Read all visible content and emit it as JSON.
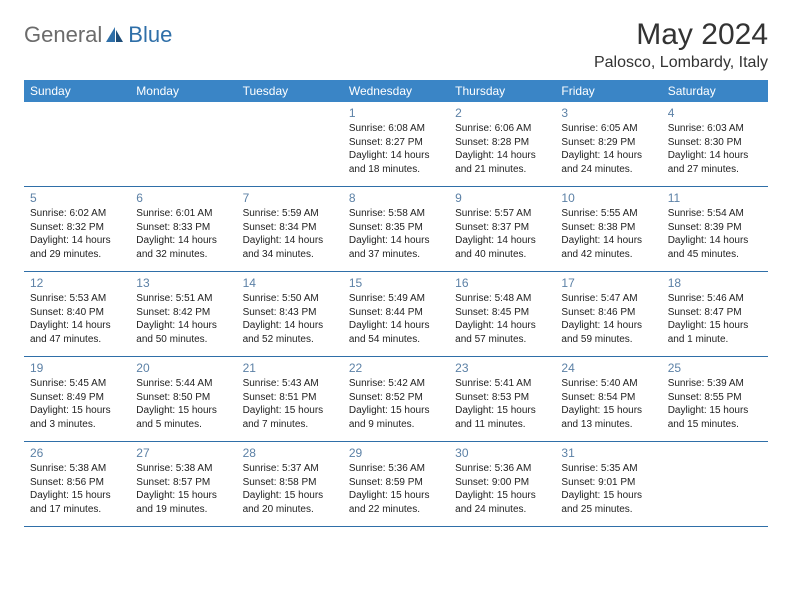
{
  "header": {
    "logo_general": "General",
    "logo_blue": "Blue",
    "month_title": "May 2024",
    "location": "Palosco, Lombardy, Italy"
  },
  "colors": {
    "header_bar": "#3a85c6",
    "header_text": "#ffffff",
    "daynum": "#5c81a6",
    "divider": "#2f6fa8",
    "logo_gray": "#6b6b6b",
    "logo_blue": "#2f6fa8"
  },
  "day_names": [
    "Sunday",
    "Monday",
    "Tuesday",
    "Wednesday",
    "Thursday",
    "Friday",
    "Saturday"
  ],
  "weeks": [
    [
      null,
      null,
      null,
      {
        "n": "1",
        "sr": "Sunrise: 6:08 AM",
        "ss": "Sunset: 8:27 PM",
        "dl1": "Daylight: 14 hours",
        "dl2": "and 18 minutes."
      },
      {
        "n": "2",
        "sr": "Sunrise: 6:06 AM",
        "ss": "Sunset: 8:28 PM",
        "dl1": "Daylight: 14 hours",
        "dl2": "and 21 minutes."
      },
      {
        "n": "3",
        "sr": "Sunrise: 6:05 AM",
        "ss": "Sunset: 8:29 PM",
        "dl1": "Daylight: 14 hours",
        "dl2": "and 24 minutes."
      },
      {
        "n": "4",
        "sr": "Sunrise: 6:03 AM",
        "ss": "Sunset: 8:30 PM",
        "dl1": "Daylight: 14 hours",
        "dl2": "and 27 minutes."
      }
    ],
    [
      {
        "n": "5",
        "sr": "Sunrise: 6:02 AM",
        "ss": "Sunset: 8:32 PM",
        "dl1": "Daylight: 14 hours",
        "dl2": "and 29 minutes."
      },
      {
        "n": "6",
        "sr": "Sunrise: 6:01 AM",
        "ss": "Sunset: 8:33 PM",
        "dl1": "Daylight: 14 hours",
        "dl2": "and 32 minutes."
      },
      {
        "n": "7",
        "sr": "Sunrise: 5:59 AM",
        "ss": "Sunset: 8:34 PM",
        "dl1": "Daylight: 14 hours",
        "dl2": "and 34 minutes."
      },
      {
        "n": "8",
        "sr": "Sunrise: 5:58 AM",
        "ss": "Sunset: 8:35 PM",
        "dl1": "Daylight: 14 hours",
        "dl2": "and 37 minutes."
      },
      {
        "n": "9",
        "sr": "Sunrise: 5:57 AM",
        "ss": "Sunset: 8:37 PM",
        "dl1": "Daylight: 14 hours",
        "dl2": "and 40 minutes."
      },
      {
        "n": "10",
        "sr": "Sunrise: 5:55 AM",
        "ss": "Sunset: 8:38 PM",
        "dl1": "Daylight: 14 hours",
        "dl2": "and 42 minutes."
      },
      {
        "n": "11",
        "sr": "Sunrise: 5:54 AM",
        "ss": "Sunset: 8:39 PM",
        "dl1": "Daylight: 14 hours",
        "dl2": "and 45 minutes."
      }
    ],
    [
      {
        "n": "12",
        "sr": "Sunrise: 5:53 AM",
        "ss": "Sunset: 8:40 PM",
        "dl1": "Daylight: 14 hours",
        "dl2": "and 47 minutes."
      },
      {
        "n": "13",
        "sr": "Sunrise: 5:51 AM",
        "ss": "Sunset: 8:42 PM",
        "dl1": "Daylight: 14 hours",
        "dl2": "and 50 minutes."
      },
      {
        "n": "14",
        "sr": "Sunrise: 5:50 AM",
        "ss": "Sunset: 8:43 PM",
        "dl1": "Daylight: 14 hours",
        "dl2": "and 52 minutes."
      },
      {
        "n": "15",
        "sr": "Sunrise: 5:49 AM",
        "ss": "Sunset: 8:44 PM",
        "dl1": "Daylight: 14 hours",
        "dl2": "and 54 minutes."
      },
      {
        "n": "16",
        "sr": "Sunrise: 5:48 AM",
        "ss": "Sunset: 8:45 PM",
        "dl1": "Daylight: 14 hours",
        "dl2": "and 57 minutes."
      },
      {
        "n": "17",
        "sr": "Sunrise: 5:47 AM",
        "ss": "Sunset: 8:46 PM",
        "dl1": "Daylight: 14 hours",
        "dl2": "and 59 minutes."
      },
      {
        "n": "18",
        "sr": "Sunrise: 5:46 AM",
        "ss": "Sunset: 8:47 PM",
        "dl1": "Daylight: 15 hours",
        "dl2": "and 1 minute."
      }
    ],
    [
      {
        "n": "19",
        "sr": "Sunrise: 5:45 AM",
        "ss": "Sunset: 8:49 PM",
        "dl1": "Daylight: 15 hours",
        "dl2": "and 3 minutes."
      },
      {
        "n": "20",
        "sr": "Sunrise: 5:44 AM",
        "ss": "Sunset: 8:50 PM",
        "dl1": "Daylight: 15 hours",
        "dl2": "and 5 minutes."
      },
      {
        "n": "21",
        "sr": "Sunrise: 5:43 AM",
        "ss": "Sunset: 8:51 PM",
        "dl1": "Daylight: 15 hours",
        "dl2": "and 7 minutes."
      },
      {
        "n": "22",
        "sr": "Sunrise: 5:42 AM",
        "ss": "Sunset: 8:52 PM",
        "dl1": "Daylight: 15 hours",
        "dl2": "and 9 minutes."
      },
      {
        "n": "23",
        "sr": "Sunrise: 5:41 AM",
        "ss": "Sunset: 8:53 PM",
        "dl1": "Daylight: 15 hours",
        "dl2": "and 11 minutes."
      },
      {
        "n": "24",
        "sr": "Sunrise: 5:40 AM",
        "ss": "Sunset: 8:54 PM",
        "dl1": "Daylight: 15 hours",
        "dl2": "and 13 minutes."
      },
      {
        "n": "25",
        "sr": "Sunrise: 5:39 AM",
        "ss": "Sunset: 8:55 PM",
        "dl1": "Daylight: 15 hours",
        "dl2": "and 15 minutes."
      }
    ],
    [
      {
        "n": "26",
        "sr": "Sunrise: 5:38 AM",
        "ss": "Sunset: 8:56 PM",
        "dl1": "Daylight: 15 hours",
        "dl2": "and 17 minutes."
      },
      {
        "n": "27",
        "sr": "Sunrise: 5:38 AM",
        "ss": "Sunset: 8:57 PM",
        "dl1": "Daylight: 15 hours",
        "dl2": "and 19 minutes."
      },
      {
        "n": "28",
        "sr": "Sunrise: 5:37 AM",
        "ss": "Sunset: 8:58 PM",
        "dl1": "Daylight: 15 hours",
        "dl2": "and 20 minutes."
      },
      {
        "n": "29",
        "sr": "Sunrise: 5:36 AM",
        "ss": "Sunset: 8:59 PM",
        "dl1": "Daylight: 15 hours",
        "dl2": "and 22 minutes."
      },
      {
        "n": "30",
        "sr": "Sunrise: 5:36 AM",
        "ss": "Sunset: 9:00 PM",
        "dl1": "Daylight: 15 hours",
        "dl2": "and 24 minutes."
      },
      {
        "n": "31",
        "sr": "Sunrise: 5:35 AM",
        "ss": "Sunset: 9:01 PM",
        "dl1": "Daylight: 15 hours",
        "dl2": "and 25 minutes."
      },
      null
    ]
  ]
}
